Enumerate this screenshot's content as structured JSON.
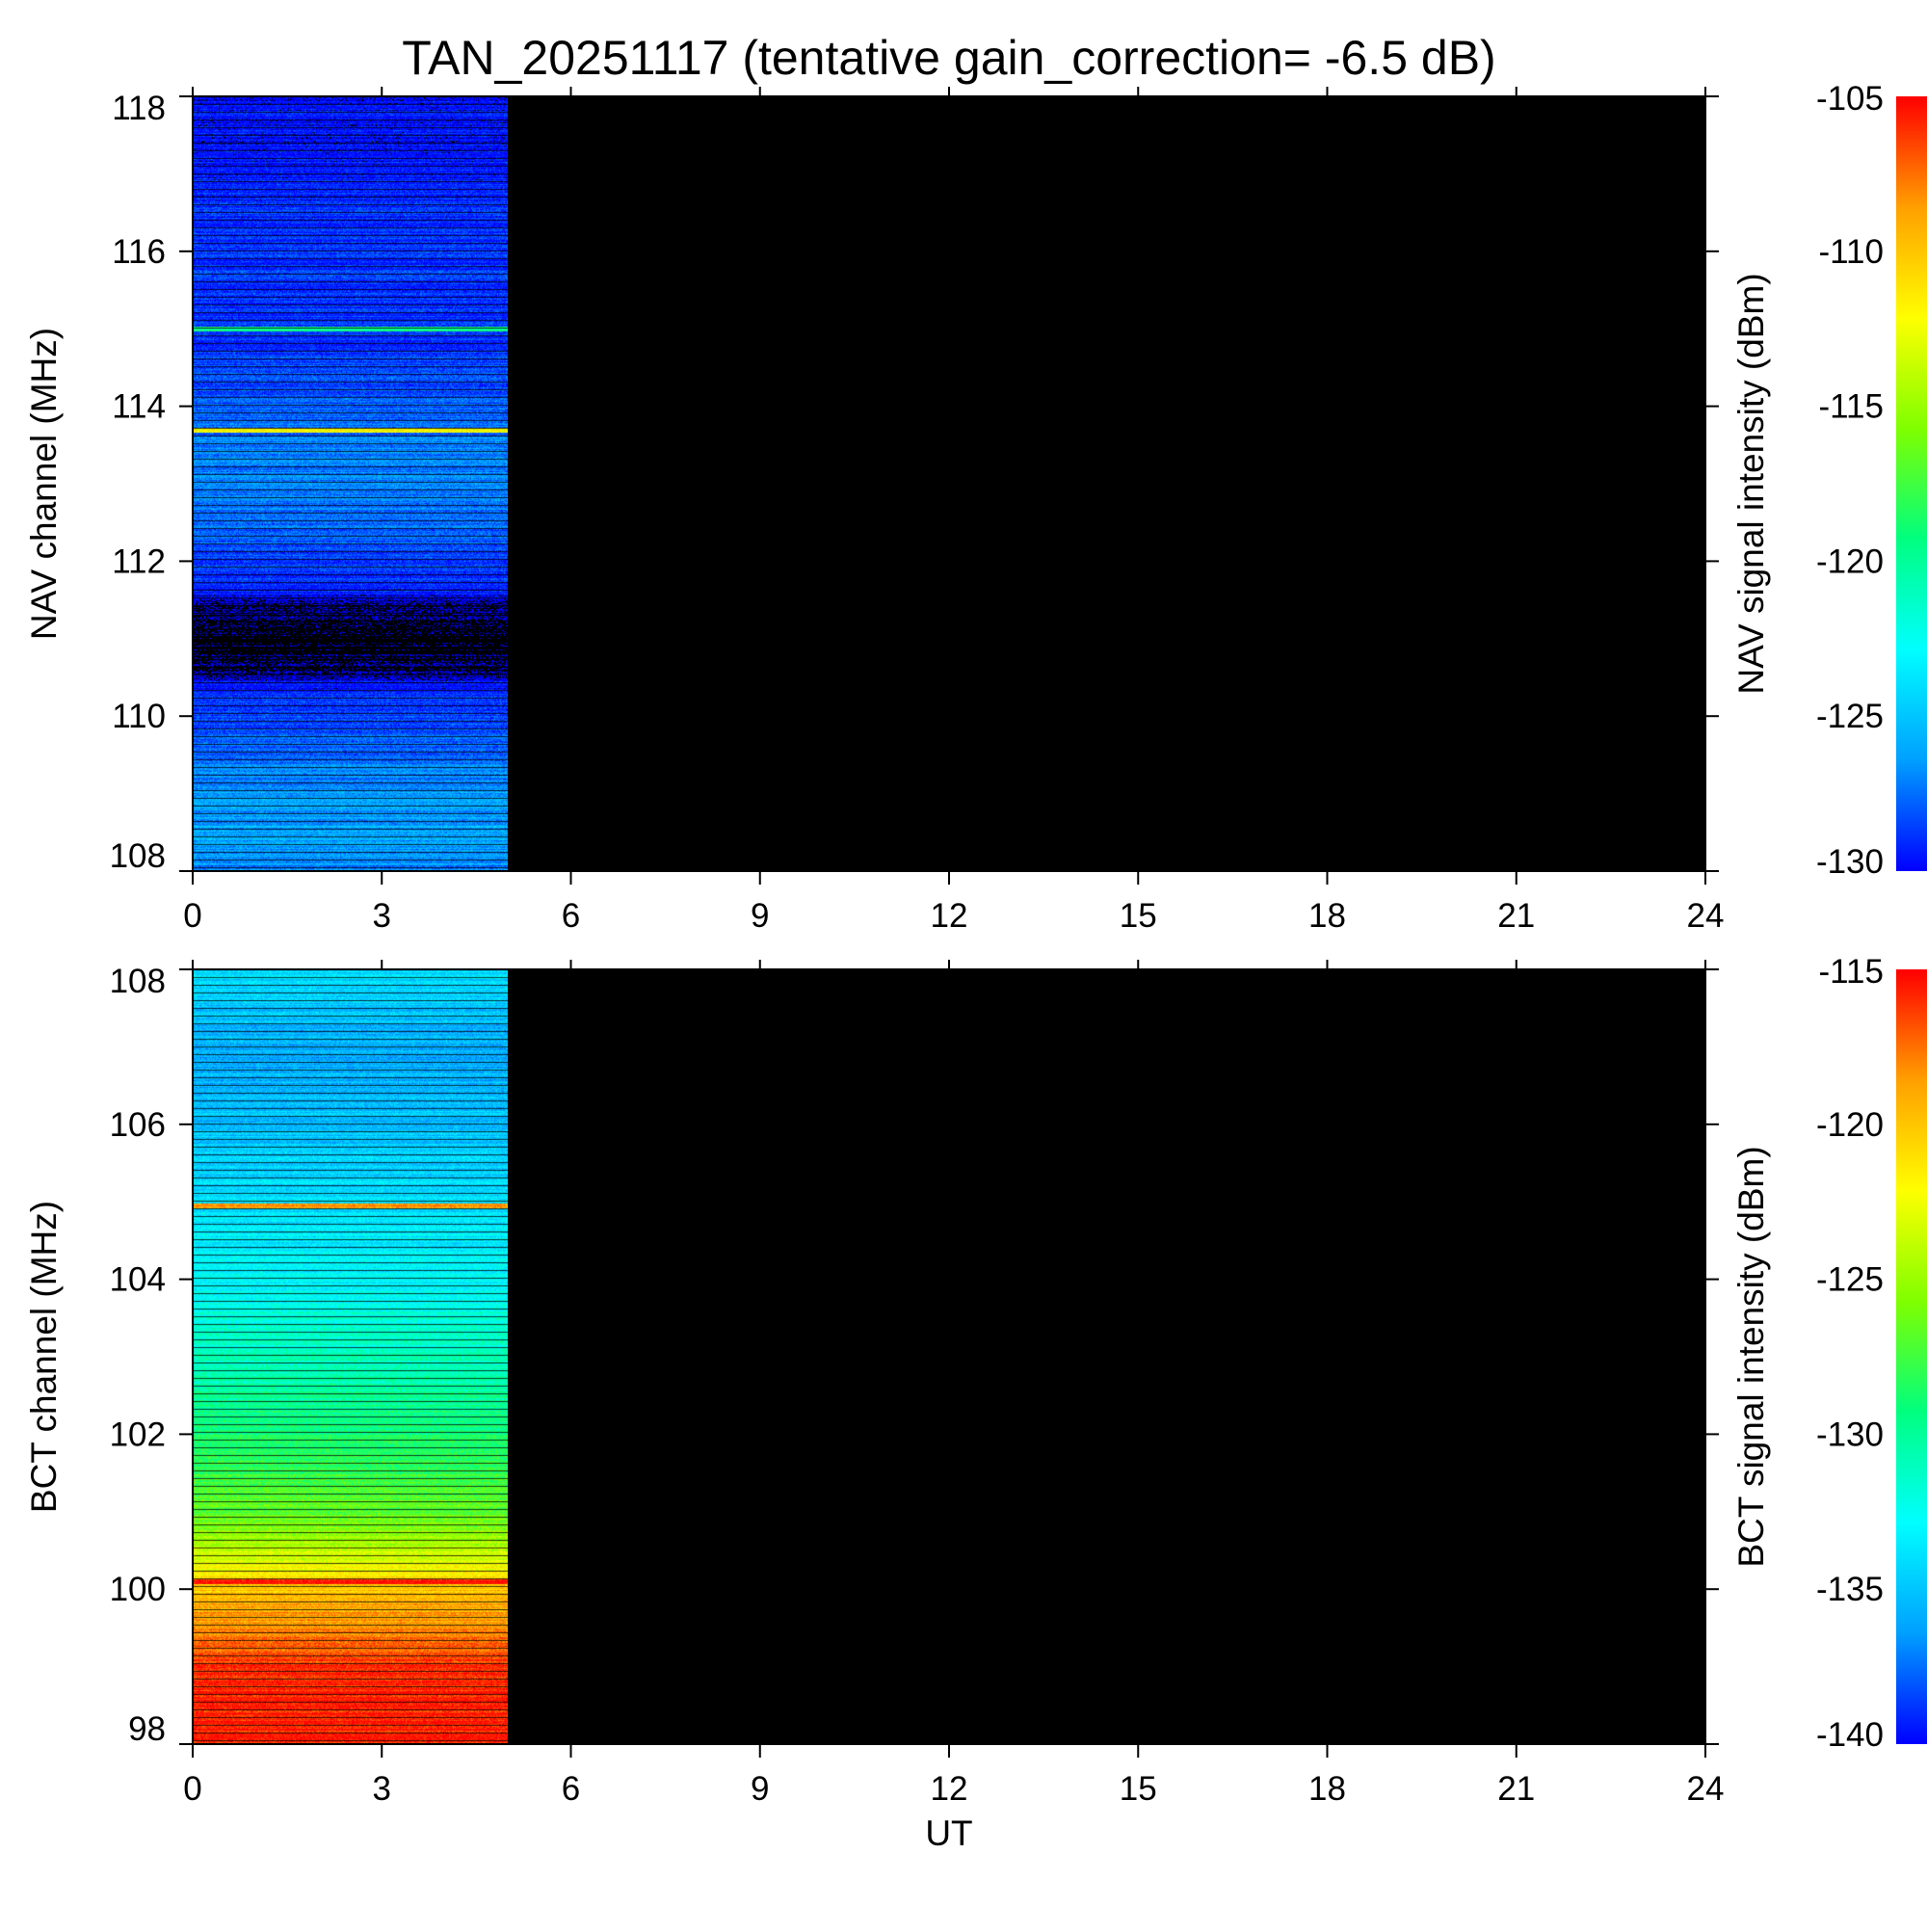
{
  "figure": {
    "title": "TAN_20251117 (tentative gain_correction= -6.5 dB)"
  },
  "chart_data": [
    {
      "type": "heatmap",
      "panel": "NAV",
      "ylabel": "NAV channel (MHz)",
      "xlim": [
        0,
        24
      ],
      "ylim": [
        108,
        118
      ],
      "x_ticks": [
        0,
        3,
        6,
        9,
        12,
        15,
        18,
        21,
        24
      ],
      "x_tick_labels": [
        "0",
        "3",
        "6",
        "9",
        "12",
        "15",
        "18",
        "21",
        "24"
      ],
      "y_ticks": [
        108,
        110,
        112,
        114,
        116,
        118
      ],
      "y_tick_labels": [
        "108",
        "110",
        "112",
        "114",
        "116",
        "118"
      ],
      "data_time_range": [
        0,
        5
      ],
      "no_data_color": "#000000",
      "colorbar": {
        "label": "NAV signal intensity (dBm)",
        "range": [
          -130,
          -105
        ],
        "ticks": [
          -105,
          -110,
          -115,
          -120,
          -125,
          -130
        ],
        "tick_labels": [
          "-105",
          "-110",
          "-115",
          "-120",
          "-125",
          "-130"
        ],
        "colormap": [
          "#0000ff",
          "#00a0ff",
          "#00ffff",
          "#00ff80",
          "#80ff00",
          "#ffff00",
          "#ffa000",
          "#ff0000"
        ]
      },
      "intensity_profile": [
        {
          "freq": 108.0,
          "dbm": -127
        },
        {
          "freq": 108.5,
          "dbm": -126
        },
        {
          "freq": 109.0,
          "dbm": -126.5
        },
        {
          "freq": 109.5,
          "dbm": -127.5
        },
        {
          "freq": 110.0,
          "dbm": -128.5
        },
        {
          "freq": 110.4,
          "dbm": -129.5
        },
        {
          "freq": 110.6,
          "dbm": -132
        },
        {
          "freq": 111.0,
          "dbm": -133
        },
        {
          "freq": 111.4,
          "dbm": -132
        },
        {
          "freq": 111.6,
          "dbm": -129.5
        },
        {
          "freq": 112.0,
          "dbm": -128.5
        },
        {
          "freq": 112.5,
          "dbm": -127.5
        },
        {
          "freq": 113.0,
          "dbm": -127
        },
        {
          "freq": 113.5,
          "dbm": -127
        },
        {
          "freq": 114.0,
          "dbm": -128
        },
        {
          "freq": 114.5,
          "dbm": -128.5
        },
        {
          "freq": 115.0,
          "dbm": -129
        },
        {
          "freq": 115.5,
          "dbm": -129
        },
        {
          "freq": 116.0,
          "dbm": -129
        },
        {
          "freq": 117.0,
          "dbm": -129.5
        },
        {
          "freq": 118.0,
          "dbm": -130
        }
      ],
      "strong_channels": [
        {
          "freq": 113.7,
          "dbm": -112
        },
        {
          "freq": 115.0,
          "dbm": -119
        }
      ]
    },
    {
      "type": "heatmap",
      "panel": "BCT",
      "xlabel": "UT",
      "ylabel": "BCT channel (MHz)",
      "xlim": [
        0,
        24
      ],
      "ylim": [
        98,
        108
      ],
      "x_ticks": [
        0,
        3,
        6,
        9,
        12,
        15,
        18,
        21,
        24
      ],
      "x_tick_labels": [
        "0",
        "3",
        "6",
        "9",
        "12",
        "15",
        "18",
        "21",
        "24"
      ],
      "y_ticks": [
        98,
        100,
        102,
        104,
        106,
        108
      ],
      "y_tick_labels": [
        "98",
        "100",
        "102",
        "104",
        "106",
        "108"
      ],
      "data_time_range": [
        0,
        5
      ],
      "no_data_color": "#000000",
      "colorbar": {
        "label": "BCT signal intensity (dBm)",
        "range": [
          -140,
          -115
        ],
        "ticks": [
          -115,
          -120,
          -125,
          -130,
          -135,
          -140
        ],
        "tick_labels": [
          "-115",
          "-120",
          "-125",
          "-130",
          "-135",
          "-140"
        ],
        "colormap": [
          "#0000ff",
          "#00a0ff",
          "#00ffff",
          "#00ff80",
          "#80ff00",
          "#ffff00",
          "#ffa000",
          "#ff0000"
        ]
      },
      "intensity_profile": [
        {
          "freq": 98.0,
          "dbm": -115.5
        },
        {
          "freq": 99.0,
          "dbm": -116
        },
        {
          "freq": 99.5,
          "dbm": -118
        },
        {
          "freq": 100.0,
          "dbm": -120
        },
        {
          "freq": 100.5,
          "dbm": -124
        },
        {
          "freq": 101.0,
          "dbm": -126.5
        },
        {
          "freq": 102.0,
          "dbm": -129
        },
        {
          "freq": 103.0,
          "dbm": -131
        },
        {
          "freq": 104.0,
          "dbm": -133
        },
        {
          "freq": 105.0,
          "dbm": -134
        },
        {
          "freq": 106.0,
          "dbm": -135
        },
        {
          "freq": 107.0,
          "dbm": -136
        },
        {
          "freq": 108.0,
          "dbm": -134
        }
      ],
      "strong_channels": [
        {
          "freq": 100.1,
          "dbm": -115
        },
        {
          "freq": 104.95,
          "dbm": -119
        }
      ]
    }
  ]
}
